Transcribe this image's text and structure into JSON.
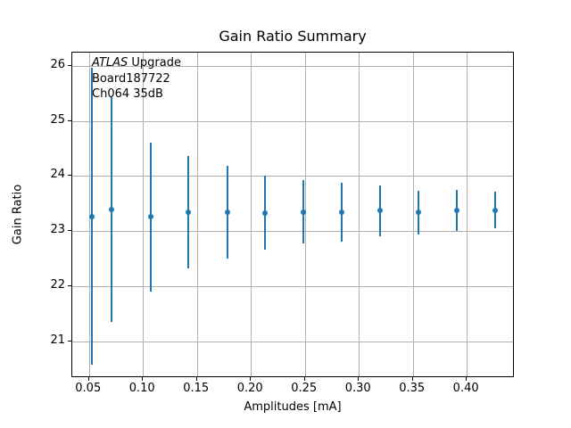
{
  "window": {
    "title": "Gain Ratio Summary figure"
  },
  "chart_data": {
    "type": "scatter",
    "subtype": "errorbar",
    "title": "Gain Ratio Summary",
    "xlabel": "Amplitudes [mA]",
    "ylabel": "Gain Ratio",
    "annotation": {
      "line1_italic": "ATLAS",
      "line1_rest": " Upgrade",
      "line2": "Board187722",
      "line3": "Ch064 35dB"
    },
    "x": [
      0.053,
      0.071,
      0.107,
      0.142,
      0.178,
      0.213,
      0.249,
      0.284,
      0.32,
      0.355,
      0.391,
      0.426
    ],
    "y": [
      23.27,
      23.39,
      23.26,
      23.34,
      23.34,
      23.33,
      23.35,
      23.34,
      23.37,
      23.34,
      23.38,
      23.38
    ],
    "yerr": [
      2.69,
      2.04,
      1.35,
      1.02,
      0.84,
      0.67,
      0.57,
      0.53,
      0.46,
      0.4,
      0.37,
      0.33
    ],
    "xlim": [
      0.0345,
      0.4445
    ],
    "ylim": [
      20.34,
      26.25
    ],
    "xticks": [
      0.05,
      0.1,
      0.15,
      0.2,
      0.25,
      0.3,
      0.35,
      0.4
    ],
    "xtick_labels": [
      "0.05",
      "0.10",
      "0.15",
      "0.20",
      "0.25",
      "0.30",
      "0.35",
      "0.40"
    ],
    "yticks": [
      21,
      22,
      23,
      24,
      25,
      26
    ],
    "ytick_labels": [
      "21",
      "22",
      "23",
      "24",
      "25",
      "26"
    ],
    "grid": true,
    "legend": null,
    "series_color": "#1f77b4",
    "grid_color": "#b0b0b0",
    "marker": "point",
    "error_caps": false
  }
}
